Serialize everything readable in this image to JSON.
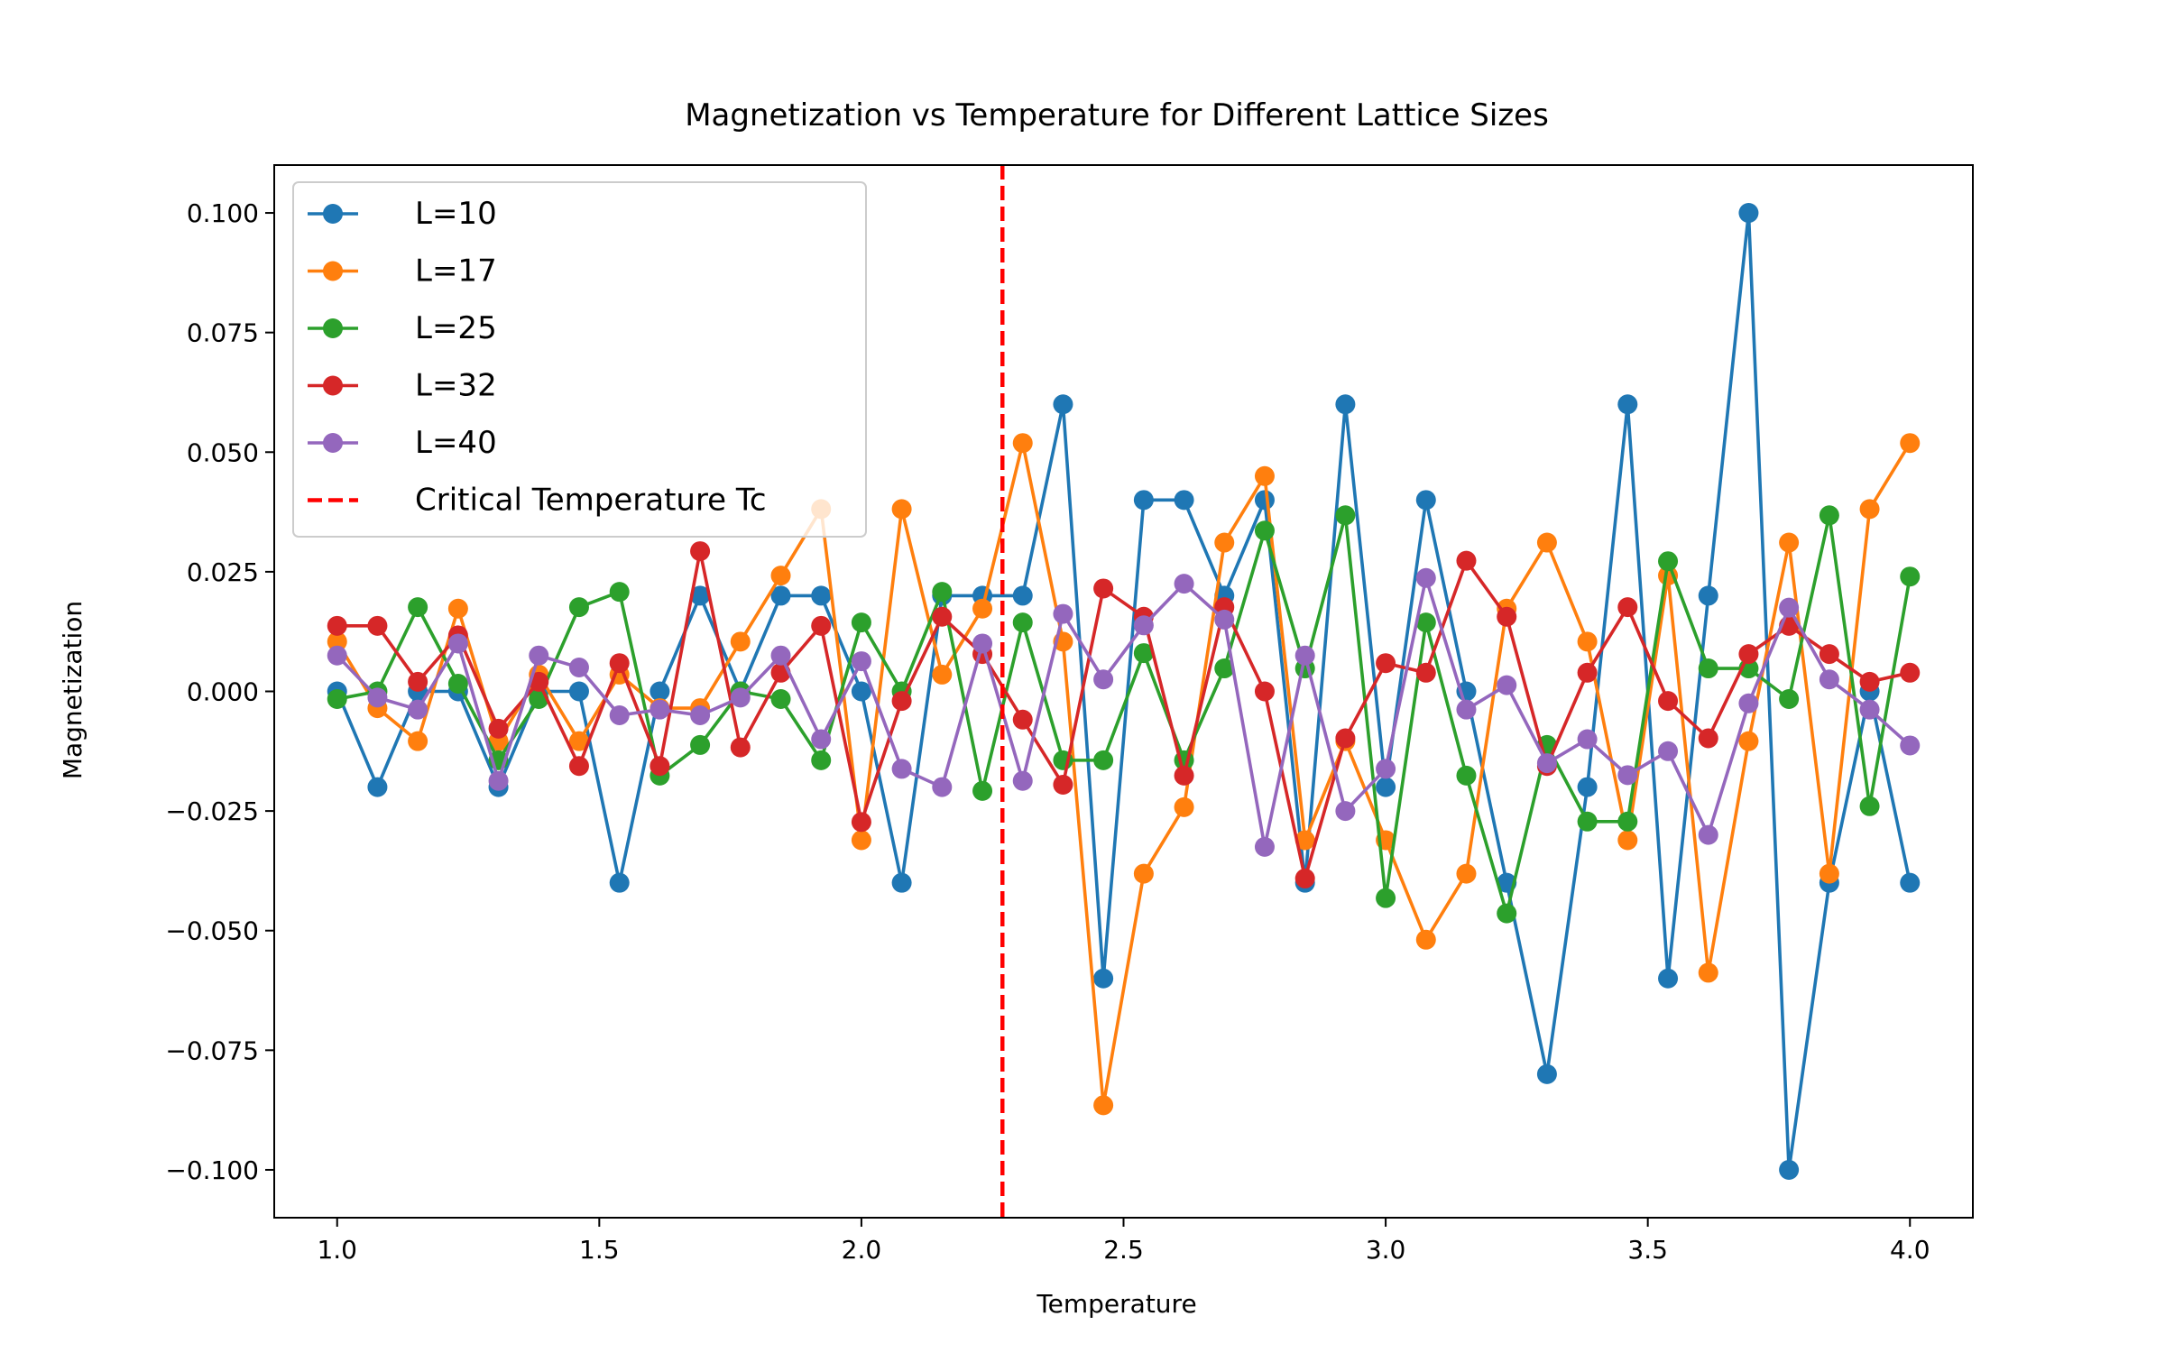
{
  "chart_data": {
    "type": "line",
    "title": "Magnetization vs Temperature for Different Lattice Sizes",
    "xlabel": "Temperature",
    "ylabel": "Magnetization",
    "xlim": [
      0.88,
      4.12
    ],
    "ylim": [
      -0.11,
      0.11
    ],
    "xticks": [
      1.0,
      1.5,
      2.0,
      2.5,
      3.0,
      3.5,
      4.0
    ],
    "xtick_labels": [
      "1.0",
      "1.5",
      "2.0",
      "2.5",
      "3.0",
      "3.5",
      "4.0"
    ],
    "yticks": [
      0.1,
      0.075,
      0.05,
      0.025,
      0.0,
      -0.025,
      -0.05,
      -0.075,
      -0.1
    ],
    "ytick_labels": [
      "0.100",
      "0.075",
      "0.050",
      "0.025",
      "0.000",
      "−0.025",
      "−0.050",
      "−0.075",
      "−0.100"
    ],
    "grid": false,
    "legend_position": "top-left",
    "x": [
      1.0,
      1.0769,
      1.1538,
      1.2308,
      1.3077,
      1.3846,
      1.4615,
      1.5385,
      1.6154,
      1.6923,
      1.7692,
      1.8462,
      1.9231,
      2.0,
      2.0769,
      2.1538,
      2.2308,
      2.3077,
      2.3846,
      2.4615,
      2.5385,
      2.6154,
      2.6923,
      2.7692,
      2.8462,
      2.9231,
      3.0,
      3.0769,
      3.1538,
      3.2308,
      3.3077,
      3.3846,
      3.4615,
      3.5385,
      3.6154,
      3.6923,
      3.7692,
      3.8462,
      3.9231,
      4.0
    ],
    "series": [
      {
        "name": "L=10",
        "color": "#1f77b4",
        "values": [
          0.0,
          -0.02,
          0.0,
          0.0,
          -0.02,
          0.0,
          0.0,
          -0.04,
          0.0,
          0.02,
          0.0,
          0.02,
          0.02,
          0.0,
          -0.04,
          0.02,
          0.02,
          0.02,
          0.06,
          -0.06,
          0.04,
          0.04,
          0.02,
          0.04,
          -0.04,
          0.06,
          -0.02,
          0.04,
          0.0,
          -0.04,
          -0.08,
          -0.02,
          0.06,
          -0.06,
          0.02,
          0.1,
          -0.1,
          -0.04,
          0.0,
          -0.04
        ]
      },
      {
        "name": "L=17",
        "color": "#ff7f0e",
        "values": [
          0.0104,
          -0.0035,
          -0.0104,
          0.0173,
          -0.0104,
          0.0035,
          -0.0104,
          0.0035,
          -0.0035,
          -0.0035,
          0.0104,
          0.0242,
          0.0381,
          -0.0311,
          0.0381,
          0.0035,
          0.0173,
          0.0519,
          0.0104,
          -0.0865,
          -0.0381,
          -0.0242,
          0.0311,
          0.045,
          -0.0311,
          -0.0104,
          -0.0311,
          -0.0519,
          -0.0381,
          0.0173,
          0.0311,
          0.0104,
          -0.0311,
          0.0242,
          -0.0588,
          -0.0104,
          0.0311,
          -0.0381,
          0.0381,
          0.0519
        ]
      },
      {
        "name": "L=25",
        "color": "#2ca02c",
        "values": [
          -0.0016,
          0.0,
          0.0176,
          0.0016,
          -0.0144,
          -0.0016,
          0.0176,
          0.0208,
          -0.0176,
          -0.0112,
          0.0,
          -0.0016,
          -0.0144,
          0.0144,
          0.0,
          0.0208,
          -0.0208,
          0.0144,
          -0.0144,
          -0.0144,
          0.008,
          -0.0144,
          0.0048,
          0.0336,
          0.0048,
          0.0368,
          -0.0432,
          0.0144,
          -0.0176,
          -0.0464,
          -0.0112,
          -0.0272,
          -0.0272,
          0.0272,
          0.0048,
          0.0048,
          -0.0016,
          0.0368,
          -0.024,
          0.024
        ]
      },
      {
        "name": "L=32",
        "color": "#d62728",
        "values": [
          0.0137,
          0.0137,
          0.002,
          0.0117,
          -0.0078,
          0.002,
          -0.0156,
          0.0059,
          -0.0156,
          0.0293,
          -0.0117,
          0.0039,
          0.0137,
          -0.0273,
          -0.002,
          0.0156,
          0.0078,
          -0.0059,
          -0.0195,
          0.0215,
          0.0156,
          -0.0176,
          0.0176,
          0.0,
          -0.0391,
          -0.0098,
          0.0059,
          0.0039,
          0.0273,
          0.0156,
          -0.0156,
          0.0039,
          0.0176,
          -0.002,
          -0.0098,
          0.0078,
          0.0137,
          0.0078,
          0.002,
          0.0039
        ]
      },
      {
        "name": "L=40",
        "color": "#9467bd",
        "values": [
          0.0075,
          -0.0013,
          -0.0038,
          0.01,
          -0.0187,
          0.0075,
          0.005,
          -0.005,
          -0.0038,
          -0.005,
          -0.0013,
          0.0075,
          -0.01,
          0.0063,
          -0.0162,
          -0.02,
          0.01,
          -0.0187,
          0.0162,
          0.0025,
          0.0138,
          0.0225,
          0.015,
          -0.0325,
          0.0075,
          -0.025,
          -0.0162,
          0.0237,
          -0.0038,
          0.0013,
          -0.015,
          -0.01,
          -0.0175,
          -0.0125,
          -0.03,
          -0.0025,
          0.0175,
          0.0025,
          -0.0038,
          -0.0113
        ]
      }
    ],
    "critical_line": {
      "name": "Critical Temperature Tc",
      "x": 2.269,
      "color": "#ff0000",
      "style": "dashed"
    }
  }
}
